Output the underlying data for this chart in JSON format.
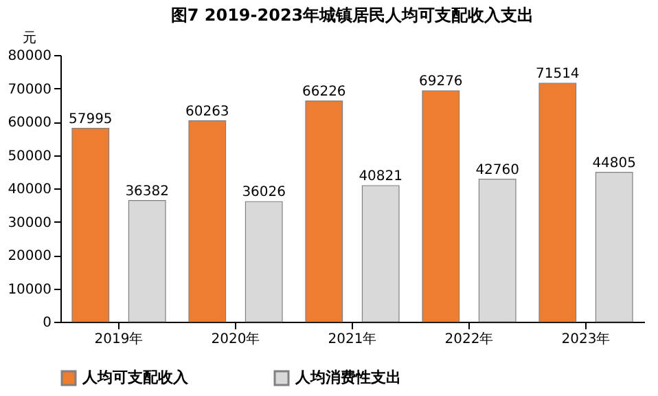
{
  "chart_data": {
    "type": "bar",
    "title": "图7  2019-2023年城镇居民人均可支配收入支出",
    "ylabel": "元",
    "categories": [
      "2019年",
      "2020年",
      "2021年",
      "2022年",
      "2023年"
    ],
    "series": [
      {
        "name": "人均可支配收入",
        "color": "#ed7d31",
        "values": [
          57995,
          60263,
          66226,
          69276,
          71514
        ]
      },
      {
        "name": "人均消费性支出",
        "color": "#d9d9d9",
        "values": [
          36382,
          36026,
          40821,
          42760,
          44805
        ]
      }
    ],
    "ylim": [
      0,
      80000
    ],
    "yticks": [
      0,
      10000,
      20000,
      30000,
      40000,
      50000,
      60000,
      70000,
      80000
    ],
    "data_labels": true,
    "legend": "bottom"
  }
}
